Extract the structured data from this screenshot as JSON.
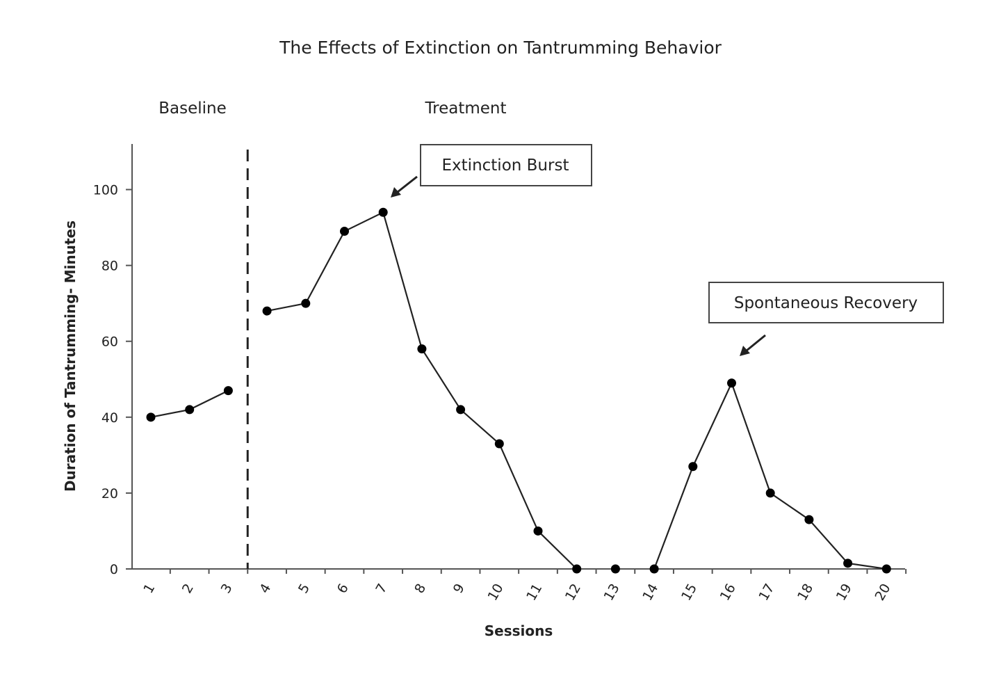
{
  "chart_data": {
    "type": "line",
    "title": "The Effects of Extinction on Tantrumming Behavior",
    "xlabel": "Sessions",
    "ylabel": "Duration of Tantrumming- Minutes",
    "ylim": [
      0,
      110
    ],
    "yticks": [
      0,
      20,
      40,
      60,
      80,
      100
    ],
    "grid": false,
    "phases": [
      {
        "label": "Baseline",
        "sessions": [
          1,
          2,
          3
        ]
      },
      {
        "label": "Treatment",
        "sessions": [
          4,
          5,
          6,
          7,
          8,
          9,
          10,
          11,
          12,
          13,
          14,
          15,
          16,
          17,
          18,
          19,
          20
        ]
      }
    ],
    "phase_change_after_session": 3,
    "x": [
      1,
      2,
      3,
      4,
      5,
      6,
      7,
      8,
      9,
      10,
      11,
      12,
      13,
      14,
      15,
      16,
      17,
      18,
      19,
      20
    ],
    "series": [
      {
        "segments": [
          {
            "x": [
              1,
              2,
              3
            ],
            "y": [
              40,
              42,
              47
            ]
          },
          {
            "x": [
              4,
              5,
              6,
              7,
              8,
              9,
              10,
              11,
              12
            ],
            "y": [
              68,
              70,
              89,
              94,
              58,
              42,
              33,
              10,
              0
            ]
          },
          {
            "x": [
              13
            ],
            "y": [
              0
            ]
          },
          {
            "x": [
              14,
              15,
              16,
              17,
              18,
              19,
              20
            ],
            "y": [
              0,
              27,
              49,
              20,
              13,
              1.5,
              0
            ]
          }
        ]
      }
    ],
    "annotations": [
      {
        "text": "Extinction Burst",
        "points_to_session": 7
      },
      {
        "text": "Spontaneous Recovery",
        "points_to_session": 16
      }
    ],
    "colors": {
      "line": "#222222",
      "marker": "#000000",
      "axis": "#555555"
    }
  }
}
